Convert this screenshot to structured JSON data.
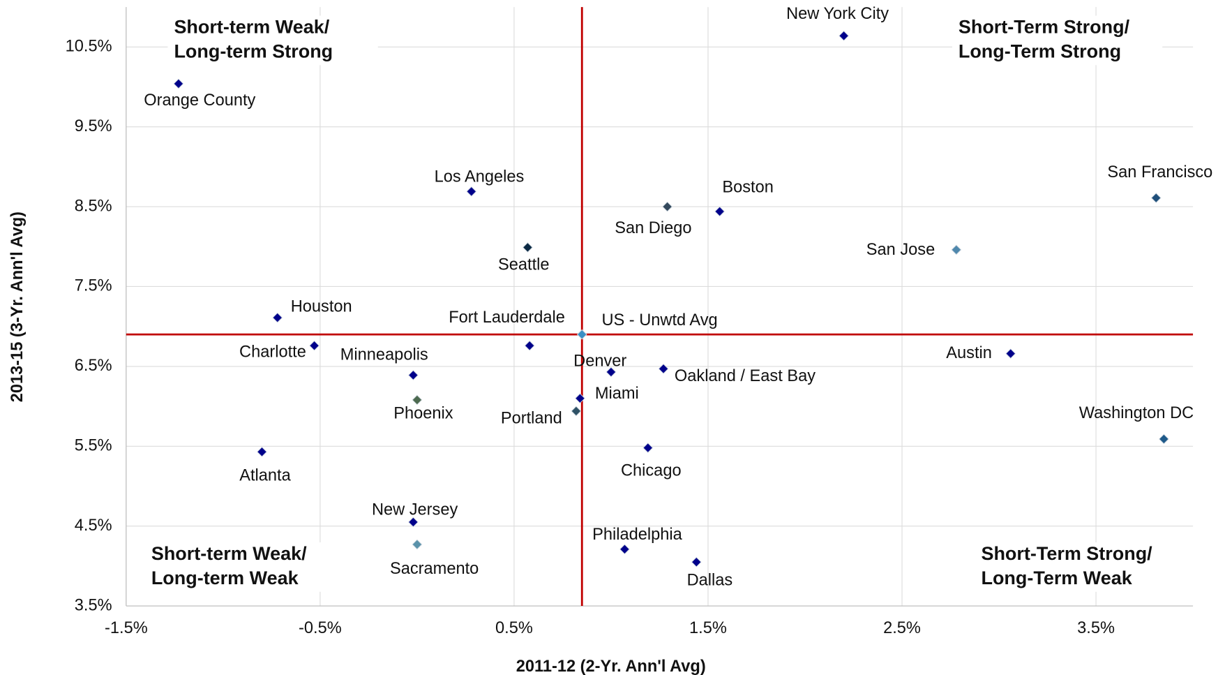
{
  "chart_data": {
    "type": "scatter",
    "x_label": "2011-12  (2-Yr. Ann'l Avg)",
    "y_label": "2013-15 (3-Yr. Ann'l Avg)",
    "xlim": [
      -1.5,
      4.0
    ],
    "ylim": [
      3.5,
      11.0
    ],
    "xticks": [
      {
        "value": -1.5,
        "label": "-1.5%"
      },
      {
        "value": -0.5,
        "label": "-0.5%"
      },
      {
        "value": 0.5,
        "label": "0.5%"
      },
      {
        "value": 1.5,
        "label": "1.5%"
      },
      {
        "value": 2.5,
        "label": "2.5%"
      },
      {
        "value": 3.5,
        "label": "3.5%"
      }
    ],
    "yticks": [
      {
        "value": 3.5,
        "label": "3.5%"
      },
      {
        "value": 4.5,
        "label": "4.5%"
      },
      {
        "value": 5.5,
        "label": "5.5%"
      },
      {
        "value": 6.5,
        "label": "6.5%"
      },
      {
        "value": 7.5,
        "label": "7.5%"
      },
      {
        "value": 8.5,
        "label": "8.5%"
      },
      {
        "value": 9.5,
        "label": "9.5%"
      },
      {
        "value": 10.5,
        "label": "10.5%"
      }
    ],
    "grid": true,
    "reference_lines": {
      "x": 0.85,
      "y": 6.9,
      "color": "#c00000"
    },
    "quadrant_labels": [
      {
        "lines": [
          "Short-term Weak/",
          "Long-term Strong"
        ]
      },
      {
        "lines": [
          "Short-Term Strong/",
          "Long-Term Strong"
        ]
      },
      {
        "lines": [
          "Short-term Weak/",
          "Long-term Weak"
        ]
      },
      {
        "lines": [
          "Short-Term Strong/",
          "Long-Term Weak"
        ]
      }
    ],
    "labels": [
      "Orange County",
      "New York City",
      "Los Angeles",
      "San Diego",
      "Boston",
      "San Francisco",
      "Seattle",
      "San Jose",
      "Houston",
      "Fort Lauderdale",
      "US - Unwtd Avg",
      "Charlotte",
      "Austin",
      "Minneapolis",
      "Denver",
      "Oakland / East Bay",
      "Phoenix",
      "Miami",
      "Portland",
      "Atlanta",
      "Chicago",
      "Washington DC",
      "New Jersey",
      "Sacramento",
      "Philadelphia",
      "Dallas"
    ],
    "x": [
      -1.23,
      2.2,
      0.28,
      1.29,
      1.56,
      3.81,
      0.57,
      2.78,
      -0.72,
      0.58,
      0.85,
      -0.53,
      3.06,
      -0.02,
      1.0,
      1.27,
      0.0,
      0.84,
      0.82,
      -0.8,
      1.19,
      3.85,
      -0.02,
      0.0,
      1.07,
      1.44
    ],
    "y": [
      10.04,
      10.64,
      8.69,
      8.5,
      8.44,
      8.61,
      7.99,
      7.96,
      7.11,
      6.76,
      6.9,
      6.76,
      6.66,
      6.39,
      6.43,
      6.47,
      6.08,
      6.1,
      5.94,
      5.43,
      5.48,
      5.59,
      4.55,
      4.27,
      4.21,
      4.05
    ],
    "colors": [
      "#00008b",
      "#00008b",
      "#00008b",
      "#34495c",
      "#00008b",
      "#1f4f7a",
      "#0c2a44",
      "#4f88ad",
      "#00008b",
      "#00008b",
      "#3a8fc4",
      "#00008b",
      "#00008b",
      "#00008b",
      "#00008b",
      "#00008b",
      "#4d6a4f",
      "#00008b",
      "#2f5266",
      "#00008b",
      "#00008b",
      "#1f5a8a",
      "#00008b",
      "#5a92aa",
      "#00008b",
      "#00008b"
    ]
  }
}
